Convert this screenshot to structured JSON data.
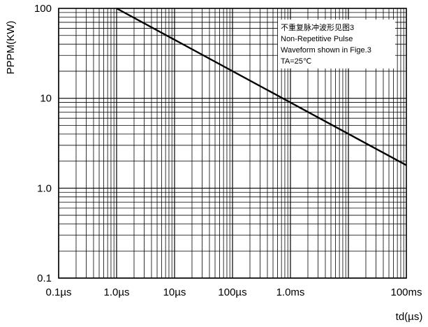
{
  "chart_data": {
    "type": "line",
    "title": "",
    "xlabel": "td(µs)",
    "ylabel": "PPPM(KW)",
    "x_scale": "log",
    "y_scale": "log",
    "x_unit": "µs",
    "xlim": [
      0.1,
      100000
    ],
    "ylim": [
      0.1,
      100
    ],
    "grid": true,
    "x_ticks": [
      {
        "value": 0.1,
        "label": "0.1µs"
      },
      {
        "value": 1,
        "label": "1.0µs"
      },
      {
        "value": 10,
        "label": "10µs"
      },
      {
        "value": 100,
        "label": "100µs"
      },
      {
        "value": 1000,
        "label": "1.0ms"
      },
      {
        "value": 100000,
        "label": "100ms"
      }
    ],
    "y_ticks": [
      {
        "value": 0.1,
        "label": "0.1"
      },
      {
        "value": 1,
        "label": "1.0"
      },
      {
        "value": 10,
        "label": "10"
      },
      {
        "value": 100,
        "label": "100"
      }
    ],
    "series": [
      {
        "name": "",
        "color": "#000000",
        "x": [
          1,
          100000
        ],
        "y": [
          100,
          1.8
        ]
      }
    ],
    "annotation": {
      "lines": [
        "不重复脉冲波形见图3",
        "Non-Repetitive Pulse",
        "Waveform shown in Fige.3",
        "TA=25℃"
      ]
    }
  }
}
